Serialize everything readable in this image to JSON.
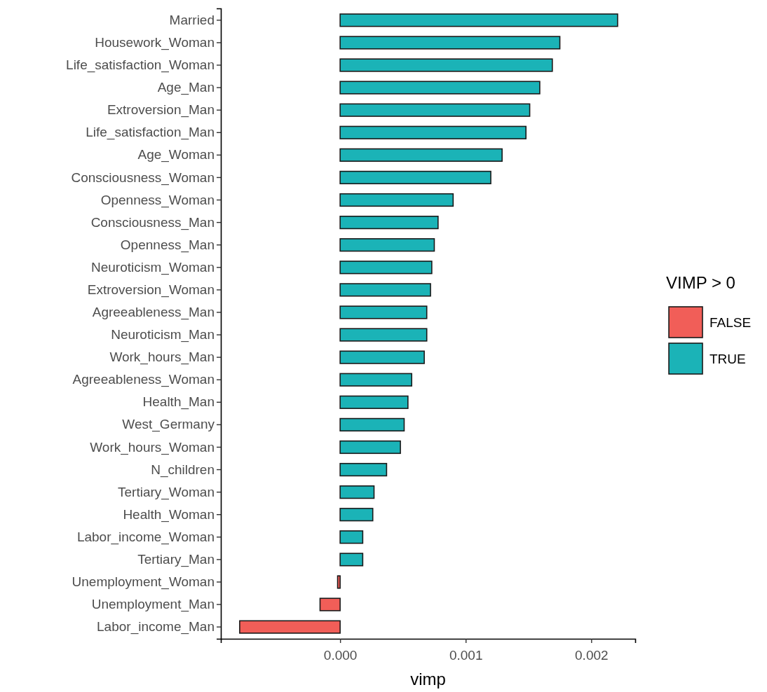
{
  "chart_data": {
    "type": "bar",
    "orientation": "horizontal",
    "xlabel": "vimp",
    "legend_title": "VIMP > 0",
    "legend": "right",
    "grid": false,
    "categories": [
      "Married",
      "Housework_Woman",
      "Life_satisfaction_Woman",
      "Age_Man",
      "Extroversion_Man",
      "Life_satisfaction_Man",
      "Age_Woman",
      "Consciousness_Woman",
      "Openness_Woman",
      "Consciousness_Man",
      "Openness_Man",
      "Neuroticism_Woman",
      "Extroversion_Woman",
      "Agreeableness_Man",
      "Neuroticism_Man",
      "Work_hours_Man",
      "Agreeableness_Woman",
      "Health_Man",
      "West_Germany",
      "Work_hours_Woman",
      "N_children",
      "Tertiary_Woman",
      "Health_Woman",
      "Labor_income_Woman",
      "Tertiary_Man",
      "Unemployment_Woman",
      "Unemployment_Man",
      "Labor_income_Man"
    ],
    "series": [
      {
        "name": "FALSE",
        "color": "#f15e58",
        "values": [
          null,
          null,
          null,
          null,
          null,
          null,
          null,
          null,
          null,
          null,
          null,
          null,
          null,
          null,
          null,
          null,
          null,
          null,
          null,
          null,
          null,
          null,
          null,
          null,
          null,
          -2e-05,
          -0.00016,
          -0.0008
        ]
      },
      {
        "name": "TRUE",
        "color": "#1bb3b7",
        "values": [
          0.00221,
          0.00175,
          0.00169,
          0.00159,
          0.00151,
          0.00148,
          0.00129,
          0.0012,
          0.0009,
          0.00078,
          0.00075,
          0.00073,
          0.00072,
          0.00069,
          0.00069,
          0.00067,
          0.00057,
          0.00054,
          0.00051,
          0.00048,
          0.00037,
          0.00027,
          0.00026,
          0.00018,
          0.00018,
          null,
          null,
          null
        ]
      }
    ],
    "xlim": [
      -0.00095,
      0.00235
    ],
    "xticks": [
      {
        "value": 0,
        "label": "0.000"
      },
      {
        "value": 0.001,
        "label": "0.001"
      },
      {
        "value": 0.002,
        "label": "0.002"
      }
    ]
  }
}
